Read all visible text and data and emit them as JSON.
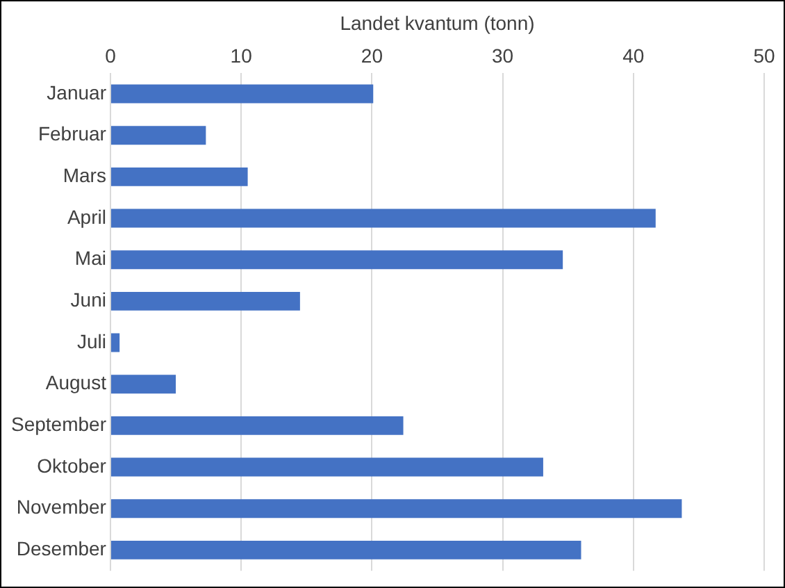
{
  "chart_data": {
    "type": "bar",
    "orientation": "horizontal",
    "xlabel": "Landet kvantum (tonn)",
    "categories": [
      "Januar",
      "Februar",
      "Mars",
      "April",
      "Mai",
      "Juni",
      "Juli",
      "August",
      "September",
      "Oktober",
      "November",
      "Desember"
    ],
    "values": [
      20.1,
      7.3,
      10.5,
      41.7,
      34.6,
      14.5,
      0.7,
      5.0,
      22.4,
      33.1,
      43.7,
      36.0
    ],
    "color": "#4472c4",
    "xlim": [
      0,
      50
    ],
    "xticks": [
      0,
      10,
      20,
      30,
      40,
      50
    ],
    "grid": "x",
    "legend": false
  }
}
